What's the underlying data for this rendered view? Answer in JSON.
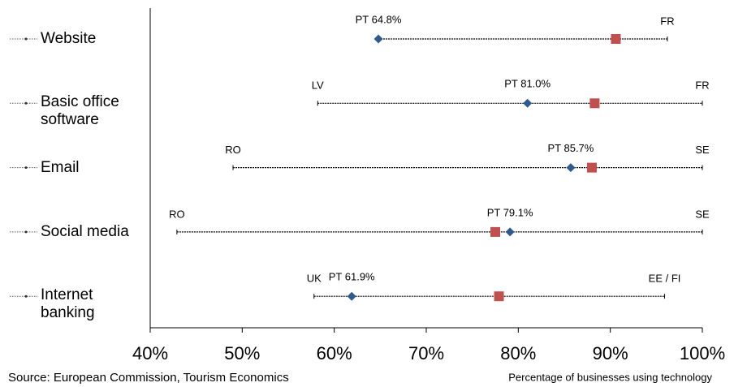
{
  "chart_data": {
    "type": "range",
    "categories": [
      "Website",
      "Basic office software",
      "Email",
      "Social media",
      "Internet banking"
    ],
    "min": [
      64.8,
      58.2,
      49.0,
      42.9,
      57.8
    ],
    "min_labels": [
      null,
      "LV",
      "RO",
      "RO",
      "UK"
    ],
    "max": [
      96.2,
      100,
      100,
      100,
      95.9
    ],
    "max_labels": [
      "FR",
      "FR",
      "SE",
      "SE",
      "EE / FI"
    ],
    "pt": [
      64.8,
      81.0,
      85.7,
      79.1,
      61.9
    ],
    "pt_labels": [
      "PT 64.8%",
      "PT 81.0%",
      "PT 85.7%",
      "PT 79.1%",
      "PT 61.9%"
    ],
    "average": [
      90.6,
      88.3,
      88.0,
      77.5,
      77.9
    ],
    "pt_color": "#2e5a8c",
    "average_color": "#c0504d",
    "line_color": "#000000",
    "xlim": [
      40,
      100
    ],
    "xticks": [
      {
        "value": 40,
        "label": "40%"
      },
      {
        "value": 50,
        "label": "50%"
      },
      {
        "value": 60,
        "label": "60%"
      },
      {
        "value": 70,
        "label": "70%"
      },
      {
        "value": 80,
        "label": "80%"
      },
      {
        "value": 90,
        "label": "90%"
      },
      {
        "value": 100,
        "label": "100%"
      }
    ],
    "source": "Source: European Commission, Tourism Economics",
    "x_label": "Percentage of businesses using technology"
  }
}
